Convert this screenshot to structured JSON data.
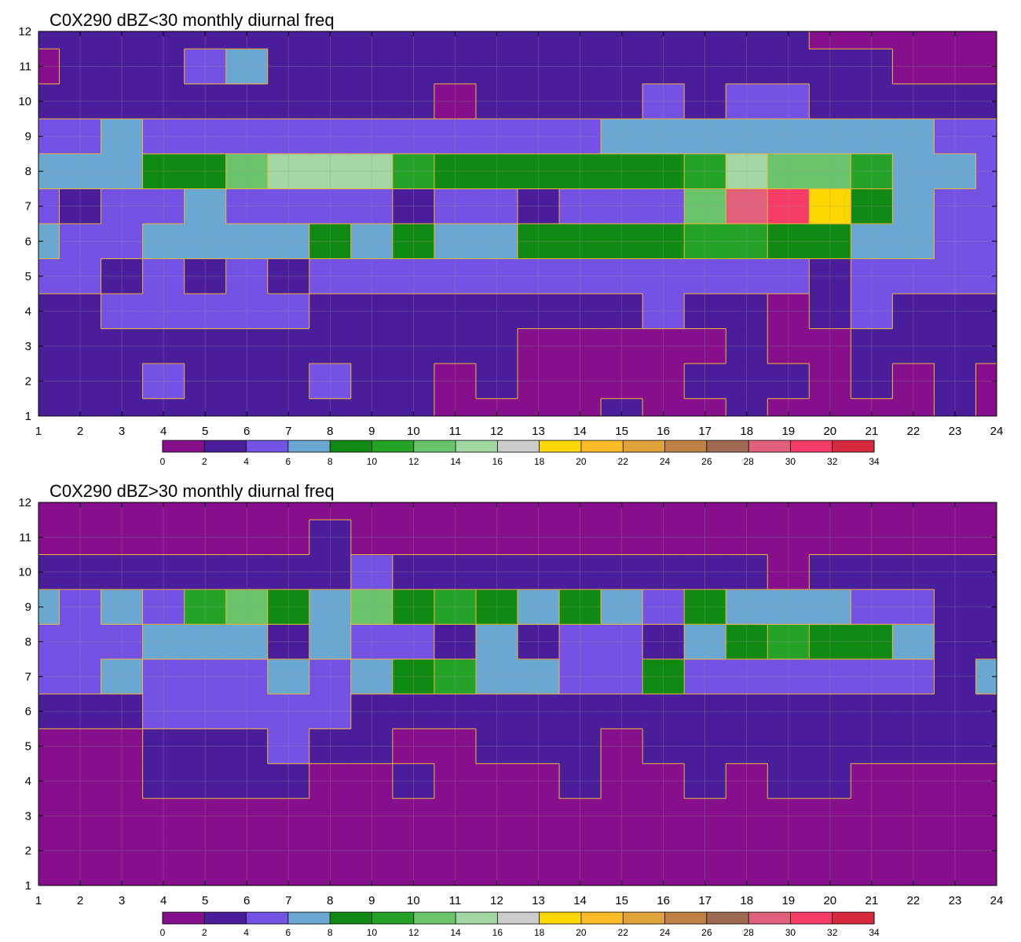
{
  "chart_data": [
    {
      "type": "heatmap",
      "title": "C0X290 dBZ<30 monthly diurnal freq",
      "xlabel": "",
      "ylabel": "",
      "x": [
        1,
        2,
        3,
        4,
        5,
        6,
        7,
        8,
        9,
        10,
        11,
        12,
        13,
        14,
        15,
        16,
        17,
        18,
        19,
        20,
        21,
        22,
        23,
        24
      ],
      "y": [
        1,
        2,
        3,
        4,
        5,
        6,
        7,
        8,
        9,
        10,
        11,
        12
      ],
      "xlim": [
        1,
        24
      ],
      "ylim": [
        1,
        12
      ],
      "grid": true,
      "contour_levels": [
        0,
        2,
        4,
        6,
        8,
        10,
        12,
        14,
        16,
        18,
        20,
        22,
        24,
        26,
        28,
        30,
        32,
        34
      ],
      "z": [
        [
          2,
          3,
          3,
          3,
          3,
          3,
          3,
          2,
          3,
          2,
          1,
          1,
          1,
          1,
          2,
          1,
          1,
          2,
          1,
          1,
          1,
          1,
          2,
          1
        ],
        [
          2,
          3,
          2,
          4,
          3,
          3,
          3,
          4,
          3,
          3,
          1,
          2,
          1,
          1,
          1,
          1,
          2,
          3,
          2,
          1,
          2,
          1,
          2,
          1
        ],
        [
          3,
          3,
          3,
          3,
          3,
          3,
          2,
          2,
          3,
          3,
          3,
          3,
          1,
          1,
          1,
          1,
          1,
          2,
          1,
          1,
          3,
          3,
          2,
          2
        ],
        [
          3,
          3,
          5,
          5,
          5,
          5,
          5,
          3,
          3,
          3,
          3,
          3,
          3,
          3,
          3,
          5,
          3,
          3,
          1,
          3,
          4,
          3,
          3,
          3
        ],
        [
          5,
          5,
          3,
          5,
          3,
          5,
          3,
          5,
          5,
          5,
          5,
          5,
          5,
          5,
          5,
          5,
          5,
          5,
          5,
          3,
          5,
          5,
          5,
          5
        ],
        [
          7,
          5,
          5,
          7,
          7,
          7,
          7,
          9,
          7,
          9,
          7,
          7,
          9,
          9,
          9,
          9,
          11,
          11,
          9,
          9,
          7,
          7,
          5,
          5
        ],
        [
          5,
          3,
          5,
          5,
          7,
          5,
          5,
          5,
          5,
          3,
          5,
          5,
          3,
          5,
          5,
          5,
          13,
          28,
          31,
          19,
          9,
          7,
          5,
          5
        ],
        [
          7,
          7,
          7,
          9,
          9,
          13,
          15,
          15,
          15,
          11,
          9,
          9,
          9,
          9,
          9,
          9,
          11,
          15,
          13,
          13,
          11,
          7,
          7,
          5
        ],
        [
          5,
          5,
          7,
          5,
          5,
          5,
          5,
          5,
          5,
          5,
          5,
          5,
          5,
          5,
          7,
          7,
          7,
          7,
          7,
          7,
          7,
          7,
          5,
          5
        ],
        [
          3,
          3,
          3,
          3,
          3,
          3,
          3,
          3,
          3,
          3,
          1,
          3,
          3,
          3,
          3,
          5,
          3,
          5,
          5,
          3,
          3,
          3,
          3,
          3
        ],
        [
          1,
          3,
          3,
          3,
          5,
          6,
          3,
          3,
          3,
          3,
          3,
          3,
          3,
          3,
          3,
          3,
          3,
          3,
          3,
          3,
          3,
          1,
          1,
          1
        ],
        [
          3,
          3,
          3,
          3,
          3,
          3,
          3,
          2,
          3,
          3,
          3,
          3,
          2,
          3,
          3,
          3,
          3,
          3,
          3,
          1,
          1,
          1,
          1,
          1
        ]
      ]
    },
    {
      "type": "heatmap",
      "title": "C0X290 dBZ>30 monthly diurnal freq",
      "xlabel": "",
      "ylabel": "",
      "x": [
        1,
        2,
        3,
        4,
        5,
        6,
        7,
        8,
        9,
        10,
        11,
        12,
        13,
        14,
        15,
        16,
        17,
        18,
        19,
        20,
        21,
        22,
        23,
        24
      ],
      "y": [
        1,
        2,
        3,
        4,
        5,
        6,
        7,
        8,
        9,
        10,
        11,
        12
      ],
      "xlim": [
        1,
        24
      ],
      "ylim": [
        1,
        12
      ],
      "grid": true,
      "contour_levels": [
        0,
        2,
        4,
        6,
        8,
        10,
        12,
        14,
        16,
        18,
        20,
        22,
        24,
        26,
        28,
        30,
        32,
        34
      ],
      "z": [
        [
          1,
          1,
          1,
          1,
          1,
          1,
          1,
          1,
          1,
          1,
          1,
          1,
          1,
          1,
          1,
          1,
          1,
          1,
          1,
          1,
          1,
          1,
          1,
          1
        ],
        [
          1,
          1,
          1,
          1,
          1,
          1,
          1,
          1,
          1,
          1,
          1,
          1,
          1,
          1,
          1,
          1,
          1,
          1,
          1,
          1,
          1,
          1,
          1,
          1
        ],
        [
          1,
          1,
          1,
          1,
          1,
          1,
          1,
          1,
          1,
          1,
          1,
          1,
          1,
          1,
          1,
          1,
          1,
          1,
          1,
          1,
          1,
          1,
          1,
          1
        ],
        [
          1,
          1,
          1,
          3,
          3,
          3,
          3,
          1,
          1,
          3,
          1,
          1,
          1,
          3,
          1,
          1,
          3,
          1,
          3,
          3,
          1,
          1,
          1,
          1
        ],
        [
          1,
          1,
          1,
          3,
          3,
          3,
          5,
          3,
          3,
          1,
          1,
          3,
          3,
          3,
          1,
          3,
          3,
          3,
          3,
          3,
          3,
          3,
          3,
          3
        ],
        [
          3,
          3,
          3,
          5,
          5,
          5,
          5,
          5,
          3,
          3,
          3,
          3,
          3,
          3,
          3,
          3,
          3,
          3,
          3,
          3,
          3,
          3,
          3,
          3
        ],
        [
          5,
          5,
          7,
          5,
          5,
          5,
          7,
          5,
          7,
          9,
          11,
          7,
          7,
          5,
          5,
          9,
          5,
          5,
          5,
          5,
          5,
          5,
          3,
          7
        ],
        [
          5,
          5,
          5,
          7,
          7,
          7,
          3,
          7,
          5,
          5,
          3,
          7,
          3,
          5,
          5,
          3,
          7,
          9,
          11,
          9,
          9,
          7,
          3,
          3
        ],
        [
          7,
          5,
          7,
          5,
          11,
          13,
          9,
          7,
          13,
          9,
          11,
          9,
          7,
          9,
          7,
          5,
          9,
          7,
          7,
          7,
          5,
          5,
          3,
          3
        ],
        [
          3,
          3,
          3,
          3,
          3,
          3,
          3,
          3,
          5,
          3,
          3,
          3,
          3,
          3,
          3,
          3,
          3,
          3,
          1,
          3,
          3,
          3,
          3,
          3
        ],
        [
          1,
          1,
          1,
          1,
          1,
          1,
          1,
          3,
          1,
          1,
          1,
          1,
          1,
          1,
          1,
          1,
          1,
          1,
          1,
          1,
          1,
          1,
          1,
          1
        ],
        [
          1,
          1,
          1,
          1,
          1,
          1,
          1,
          1,
          1,
          1,
          1,
          1,
          1,
          1,
          1,
          1,
          1,
          1,
          1,
          1,
          1,
          1,
          1,
          1
        ]
      ]
    }
  ],
  "colorbar": {
    "ticks": [
      "0",
      "2",
      "4",
      "6",
      "8",
      "10",
      "12",
      "14",
      "16",
      "18",
      "20",
      "22",
      "24",
      "26",
      "28",
      "30",
      "32",
      "34"
    ],
    "colors": [
      "#860f8b",
      "#4a1e9a",
      "#7452e3",
      "#6aa8d2",
      "#108a12",
      "#25a329",
      "#6ac46c",
      "#a2d6a2",
      "#cccccc",
      "#ffd700",
      "#fdba27",
      "#e0a33a",
      "#bf8244",
      "#9e6b52",
      "#e0607c",
      "#f43c66",
      "#d52a3d"
    ]
  },
  "styles": {
    "contour_line_color": "#f2b63a",
    "grid_color": "#9a9a9a",
    "frame_color": "#000000"
  }
}
